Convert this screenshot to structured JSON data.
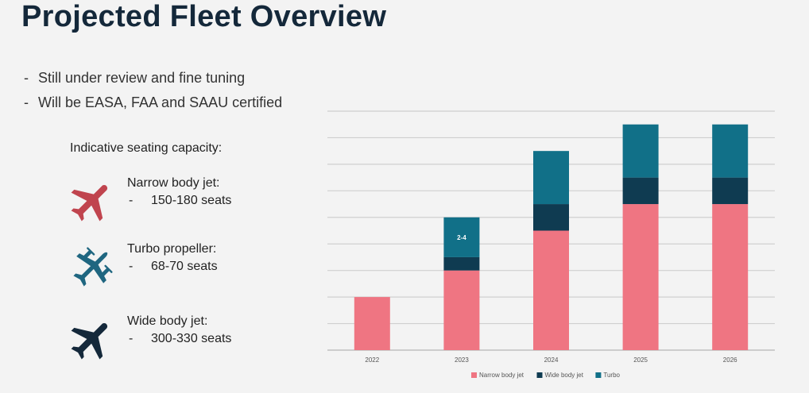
{
  "header": {
    "title": "Projected Fleet Overview"
  },
  "bullets": [
    {
      "dash": "-",
      "text": "Still under review and fine tuning"
    },
    {
      "dash": "-",
      "text": "Will be EASA, FAA and SAAU certified"
    }
  ],
  "seating": {
    "heading": "Indicative seating capacity:",
    "types": [
      {
        "name": "Narrow body jet:",
        "dash": "-",
        "seats": "150-180 seats",
        "icon": "jet-plane-icon",
        "color": "#c0444e"
      },
      {
        "name": "Turbo propeller:",
        "dash": "-",
        "seats": "68-70 seats",
        "icon": "propeller-plane-icon",
        "color": "#1f6680"
      },
      {
        "name": "Wide body jet:",
        "dash": "-",
        "seats": "300-330 seats",
        "icon": "jet-plane-icon",
        "color": "#14283a"
      }
    ]
  },
  "chart_data": {
    "type": "bar",
    "stacked": true,
    "categories": [
      "2022",
      "2023",
      "2024",
      "2025",
      "2026"
    ],
    "series": [
      {
        "name": "Narrow body jet",
        "color": "#ef7582",
        "values": [
          2,
          3,
          4.5,
          5.5,
          5.5
        ]
      },
      {
        "name": "Wide body jet",
        "color": "#0f3b51",
        "values": [
          0,
          0.5,
          1,
          1,
          1
        ]
      },
      {
        "name": "Turbo",
        "color": "#117088",
        "values": [
          0,
          1.5,
          2,
          2,
          2
        ]
      }
    ],
    "annotations": [
      {
        "category": "2023",
        "series": "Turbo",
        "text": "2-4"
      }
    ],
    "ylim": [
      0,
      9
    ],
    "grid": true,
    "legend": "bottom"
  }
}
